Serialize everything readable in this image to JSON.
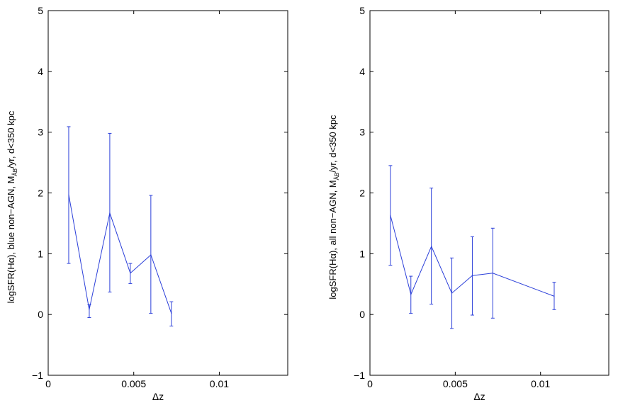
{
  "chart_data": [
    {
      "type": "line",
      "xlabel": "Δz",
      "ylabel": {
        "prefix": "logSFR(Hα), blue non−AGN, M",
        "subscript": "Å",
        "sub2": "B",
        "suffix": "/yr, d<350 kpc"
      },
      "xlim": [
        0,
        0.014
      ],
      "ylim": [
        -1,
        5
      ],
      "xticks": [
        0,
        0.005,
        0.01
      ],
      "xtick_labels": [
        "0",
        "0.005",
        "0.01"
      ],
      "yticks": [
        -1,
        0,
        1,
        2,
        3,
        4,
        5
      ],
      "ytick_labels": [
        "−1",
        "0",
        "1",
        "2",
        "3",
        "4",
        "5"
      ],
      "line_color": "#2b3fd9",
      "series": [
        {
          "x": [
            0.0012,
            0.0024,
            0.0036,
            0.0048,
            0.006,
            0.0072
          ],
          "y": [
            1.97,
            0.08,
            1.67,
            0.68,
            0.98,
            0.02
          ],
          "err_low": [
            0.84,
            -0.05,
            0.37,
            0.51,
            0.02,
            -0.19
          ],
          "err_high": [
            3.09,
            0.16,
            2.98,
            0.84,
            1.96,
            0.21
          ]
        }
      ]
    },
    {
      "type": "line",
      "xlabel": "Δz",
      "ylabel": {
        "prefix": "logSFR(Hα), all non−AGN, M",
        "subscript": "Å",
        "sub2": "B",
        "suffix": "/yr, d<350 kpc"
      },
      "xlim": [
        0,
        0.014
      ],
      "ylim": [
        -1,
        5
      ],
      "xticks": [
        0,
        0.005,
        0.01
      ],
      "xtick_labels": [
        "0",
        "0.005",
        "0.01"
      ],
      "yticks": [
        -1,
        0,
        1,
        2,
        3,
        4,
        5
      ],
      "ytick_labels": [
        "−1",
        "0",
        "1",
        "2",
        "3",
        "4",
        "5"
      ],
      "line_color": "#2b3fd9",
      "series": [
        {
          "x": [
            0.0012,
            0.0024,
            0.0036,
            0.0048,
            0.006,
            0.0072,
            0.0108
          ],
          "y": [
            1.63,
            0.33,
            1.12,
            0.35,
            0.64,
            0.68,
            0.3
          ],
          "err_low": [
            0.81,
            0.02,
            0.17,
            -0.23,
            -0.01,
            -0.06,
            0.08
          ],
          "err_high": [
            2.45,
            0.63,
            2.08,
            0.93,
            1.28,
            1.42,
            0.53
          ]
        }
      ]
    }
  ]
}
